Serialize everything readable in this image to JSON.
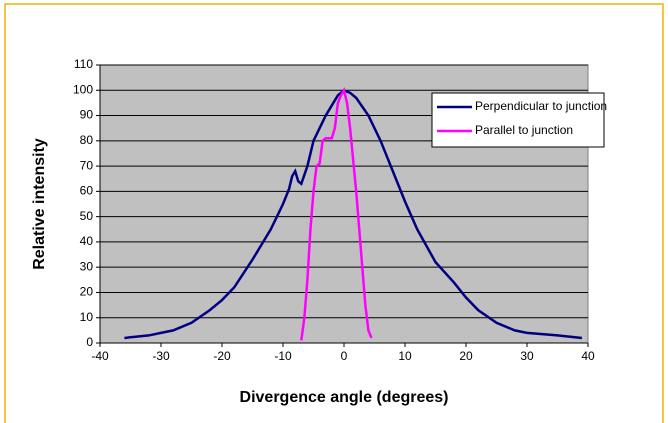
{
  "chart_data": {
    "type": "line",
    "xlabel": "Divergence angle (degrees)",
    "ylabel": "Relative intensity",
    "xlim": [
      -40,
      40
    ],
    "xticks": [
      -40,
      -30,
      -20,
      -10,
      0,
      10,
      20,
      30,
      40
    ],
    "ylim": [
      0,
      110
    ],
    "yticks": [
      0,
      10,
      20,
      30,
      40,
      50,
      60,
      70,
      80,
      90,
      100,
      110
    ],
    "grid": true,
    "legend": "upper right",
    "background": "#c0c0c0",
    "series": [
      {
        "name": "Perpendicular to junction",
        "color": "#000080",
        "x": [
          -36,
          -32,
          -30,
          -28,
          -25,
          -22,
          -20,
          -18,
          -15,
          -12,
          -10,
          -9,
          -8.5,
          -8,
          -7.5,
          -7,
          -6,
          -5,
          -4,
          -3,
          -2,
          -1,
          0,
          1,
          2,
          4,
          6,
          8,
          10,
          12,
          15,
          18,
          20,
          22,
          25,
          28,
          30,
          35,
          39
        ],
        "values": [
          2,
          3,
          4,
          5,
          8,
          13,
          17,
          22,
          33,
          45,
          55,
          61,
          66,
          68,
          64,
          63,
          70,
          80,
          85,
          90,
          94,
          98,
          100,
          99,
          97,
          90,
          80,
          68,
          56,
          45,
          32,
          24,
          18,
          13,
          8,
          5,
          4,
          3,
          2
        ]
      },
      {
        "name": "Parallel to junction",
        "color": "#ff00ff",
        "x": [
          -7,
          -6.5,
          -6,
          -5.5,
          -5,
          -4.5,
          -4,
          -3.5,
          -3,
          -2,
          -1.5,
          -1,
          -0.5,
          0,
          0.5,
          1,
          2,
          3,
          3.5,
          4,
          4.5
        ],
        "values": [
          1,
          10,
          25,
          45,
          60,
          70,
          71,
          80,
          81,
          81,
          85,
          95,
          98,
          100,
          95,
          85,
          60,
          30,
          15,
          5,
          2
        ]
      }
    ]
  }
}
